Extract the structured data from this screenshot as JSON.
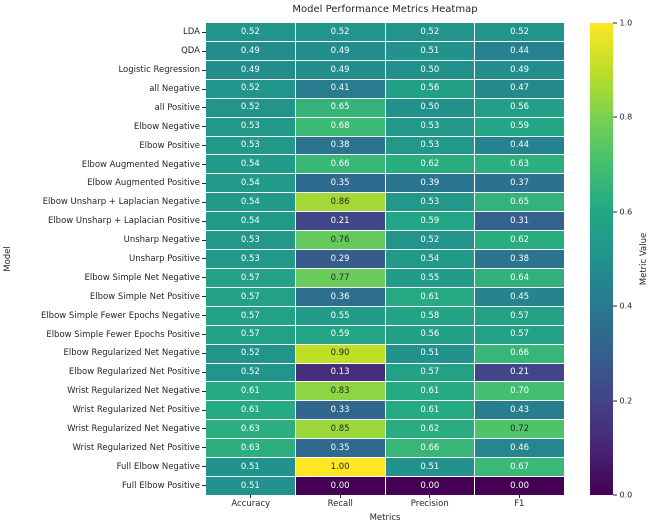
{
  "chart_data": {
    "type": "heatmap",
    "title": "Model Performance Metrics Heatmap",
    "xlabel": "Metrics",
    "ylabel": "Model",
    "colorbar_label": "Metric Value",
    "colormap": "viridis",
    "vmin": 0.0,
    "vmax": 1.0,
    "grid": false,
    "annotation_format": "0.00",
    "columns": [
      "Accuracy",
      "Recall",
      "Precision",
      "F1"
    ],
    "rows": [
      "LDA",
      "QDA",
      "Logistic Regression",
      "all Negative",
      "all Positive",
      "Elbow Negative",
      "Elbow Positive",
      "Elbow Augmented Negative",
      "Elbow Augmented Positive",
      "Elbow Unsharp + Laplacian Negative",
      "Elbow Unsharp + Laplacian Positive",
      "Unsharp Negative",
      "Unsharp Positive",
      "Elbow Simple Net Negative",
      "Elbow Simple Net Positive",
      "Elbow Simple Fewer Epochs Negative",
      "Elbow Simple Fewer Epochs Positive",
      "Elbow Regularized Net Negative",
      "Elbow Regularized Net Positive",
      "Wrist Regularized Net Negative",
      "Wrist Regularized Net Positive",
      "Wrist Regularized Net Negative",
      "Wrist Regularized Net Positive",
      "Full Elbow Negative",
      "Full Elbow Positive"
    ],
    "values": [
      [
        0.52,
        0.52,
        0.52,
        0.52
      ],
      [
        0.49,
        0.49,
        0.51,
        0.44
      ],
      [
        0.49,
        0.49,
        0.5,
        0.49
      ],
      [
        0.52,
        0.41,
        0.56,
        0.47
      ],
      [
        0.52,
        0.65,
        0.5,
        0.56
      ],
      [
        0.53,
        0.68,
        0.53,
        0.59
      ],
      [
        0.53,
        0.38,
        0.53,
        0.44
      ],
      [
        0.54,
        0.66,
        0.62,
        0.63
      ],
      [
        0.54,
        0.35,
        0.39,
        0.37
      ],
      [
        0.54,
        0.86,
        0.53,
        0.65
      ],
      [
        0.54,
        0.21,
        0.59,
        0.31
      ],
      [
        0.53,
        0.76,
        0.52,
        0.62
      ],
      [
        0.53,
        0.29,
        0.54,
        0.38
      ],
      [
        0.57,
        0.77,
        0.55,
        0.64
      ],
      [
        0.57,
        0.36,
        0.61,
        0.45
      ],
      [
        0.57,
        0.55,
        0.58,
        0.57
      ],
      [
        0.57,
        0.59,
        0.56,
        0.57
      ],
      [
        0.52,
        0.9,
        0.51,
        0.66
      ],
      [
        0.52,
        0.13,
        0.57,
        0.21
      ],
      [
        0.61,
        0.83,
        0.61,
        0.7
      ],
      [
        0.61,
        0.33,
        0.61,
        0.43
      ],
      [
        0.63,
        0.85,
        0.62,
        0.72
      ],
      [
        0.63,
        0.35,
        0.66,
        0.46
      ],
      [
        0.51,
        1.0,
        0.51,
        0.67
      ],
      [
        0.51,
        0.0,
        0.0,
        0.0
      ]
    ],
    "colorbar_ticks": [
      0.0,
      0.2,
      0.4,
      0.6,
      0.8,
      1.0
    ]
  },
  "colors": {
    "background": "#ffffff",
    "cell_border": "#ffffff",
    "text": "#262626",
    "annotation_light": "#ffffff",
    "annotation_dark": "#262626"
  }
}
